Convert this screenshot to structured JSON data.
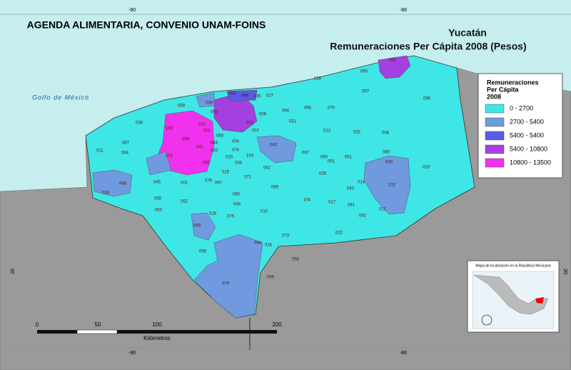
{
  "header": {
    "title": "AGENDA ALIMENTARIA, CONVENIO UNAM-FOINS",
    "state": "Yucatán",
    "subtitle": "Remuneraciones Per Cápita 2008 (Pesos)"
  },
  "legend": {
    "title": [
      "Remuneraciones",
      "Per Cápita",
      "2008"
    ],
    "items": [
      {
        "label": "0 - 2700",
        "color": "#3fe6e6"
      },
      {
        "label": "2700 - 5400",
        "color": "#6f9ae0"
      },
      {
        "label": "5400 - 5400",
        "color": "#5a5ae6"
      },
      {
        "label": "5400 - 10800",
        "color": "#a43fe0"
      },
      {
        "label": "10800 - 13500",
        "color": "#f032ee"
      }
    ]
  },
  "map": {
    "sea_label": "Golfo de México",
    "coordinates": {
      "top": [
        "-90",
        "-88"
      ],
      "bottom": [
        "-90",
        "-88"
      ],
      "left": "20",
      "right": "20"
    },
    "municipalities": [
      "061",
      "065",
      "028",
      "057",
      "096",
      "063",
      "068",
      "106",
      "027",
      "059",
      "039",
      "052",
      "009",
      "084",
      "066",
      "070",
      "100",
      "038",
      "056",
      "013",
      "002",
      "083",
      "044",
      "041",
      "031",
      "012",
      "032",
      "008",
      "087",
      "072",
      "040",
      "101",
      "050",
      "074",
      "097",
      "060",
      "085",
      "011",
      "064",
      "015",
      "034",
      "103",
      "091",
      "030",
      "019",
      "045",
      "001",
      "076",
      "080",
      "042",
      "069",
      "026",
      "014",
      "102",
      "048",
      "055",
      "062",
      "049",
      "010",
      "104",
      "017",
      "081",
      "021",
      "053",
      "018",
      "075",
      "092",
      "089",
      "094",
      "073",
      "022",
      "056",
      "016",
      "058",
      "079",
      "099",
      "071",
      "067",
      "033",
      "020",
      "007",
      "003",
      "043",
      "051",
      "004"
    ],
    "scale": {
      "ticks": [
        "0",
        "50",
        "100",
        "200"
      ],
      "unit": "Kilómetros"
    },
    "inset_title": "Mapa de localización en la República Mexicana"
  }
}
